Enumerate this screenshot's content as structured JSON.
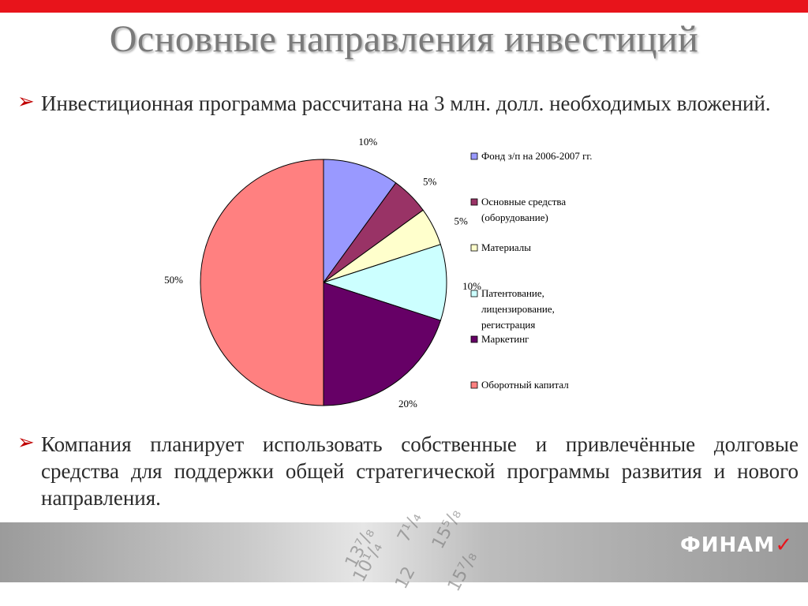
{
  "title": "Основные направления инвестиций",
  "bullets": [
    "Инвестиционная программа рассчитана на 3 млн. долл. необходимых вложений.",
    "Компания планирует использовать собственные и привлечённые долговые средства для поддержки общей стратегической программы развития и нового направления."
  ],
  "bullet_glyph": "➢",
  "chart_data": {
    "type": "pie",
    "slices": [
      {
        "label": "Фонд з/п на 2006-2007 гг.",
        "value": 10,
        "value_label": "10%",
        "color": "#9999ff"
      },
      {
        "label": "Основные средства (оборудование)",
        "value": 5,
        "value_label": "5%",
        "color": "#993366"
      },
      {
        "label": "Материалы",
        "value": 5,
        "value_label": "5%",
        "color": "#ffffcc"
      },
      {
        "label": "Патентование, лицензирование, регистрация",
        "value": 10,
        "value_label": "10%",
        "color": "#ccffff"
      },
      {
        "label": "Маркетинг",
        "value": 20,
        "value_label": "20%",
        "color": "#660066"
      },
      {
        "label": "Оборотный капитал",
        "value": 50,
        "value_label": "50%",
        "color": "#ff8080"
      }
    ],
    "legend": [
      "Фонд з/п на 2006-2007 гг.",
      "Основные средства",
      "(оборудование)",
      "Материалы",
      "Патентование,",
      "лицензирование,",
      "регистрация",
      "Маркетинг",
      "Оборотный капитал"
    ],
    "legend_position": "right"
  },
  "footer": {
    "logo_text": "ФИНАМ",
    "ticker_numbers": [
      "7¹/₄",
      "15⁵/₈",
      "13⁷/₈",
      "10¹/₄",
      "12",
      "15⁷/₈"
    ]
  }
}
